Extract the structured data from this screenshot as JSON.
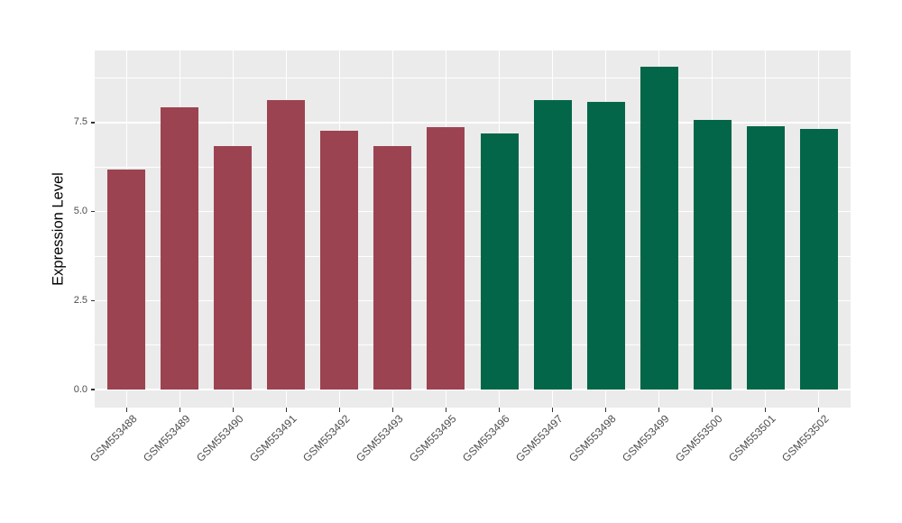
{
  "chart_data": {
    "type": "bar",
    "title": "",
    "xlabel": "",
    "ylabel": "Expression Level",
    "categories": [
      "GSM553488",
      "GSM553489",
      "GSM553490",
      "GSM553491",
      "GSM553492",
      "GSM553493",
      "GSM553495",
      "GSM553496",
      "GSM553497",
      "GSM553498",
      "GSM553499",
      "GSM553500",
      "GSM553501",
      "GSM553502"
    ],
    "values": [
      6.17,
      7.92,
      6.85,
      8.13,
      7.27,
      6.85,
      7.36,
      7.18,
      8.13,
      8.08,
      9.07,
      7.57,
      7.39,
      7.32
    ],
    "bar_colors": [
      "#9C4351",
      "#9C4351",
      "#9C4351",
      "#9C4351",
      "#9C4351",
      "#9C4351",
      "#9C4351",
      "#036648",
      "#036648",
      "#036648",
      "#036648",
      "#036648",
      "#036648",
      "#036648"
    ],
    "group_colors": {
      "left_group_maroon": "#9C4351",
      "right_group_green": "#036648"
    },
    "yticks": [
      0,
      2.5,
      5,
      7.5
    ],
    "ytick_labels": [
      "0.0",
      "2.5",
      "5.0",
      "7.5"
    ],
    "minor_yticks": [
      1.25,
      3.75,
      6.25,
      8.75
    ],
    "ylim": [
      -0.5,
      9.52
    ],
    "grid": true,
    "legend_position": "none",
    "panel_bg": "#EBEBEB",
    "grid_color": "#FFFFFF",
    "tick_color": "#333333",
    "tick_label_color": "#4D4D4D",
    "axis_title_color": "#000000",
    "background": "#FFFFFF"
  }
}
